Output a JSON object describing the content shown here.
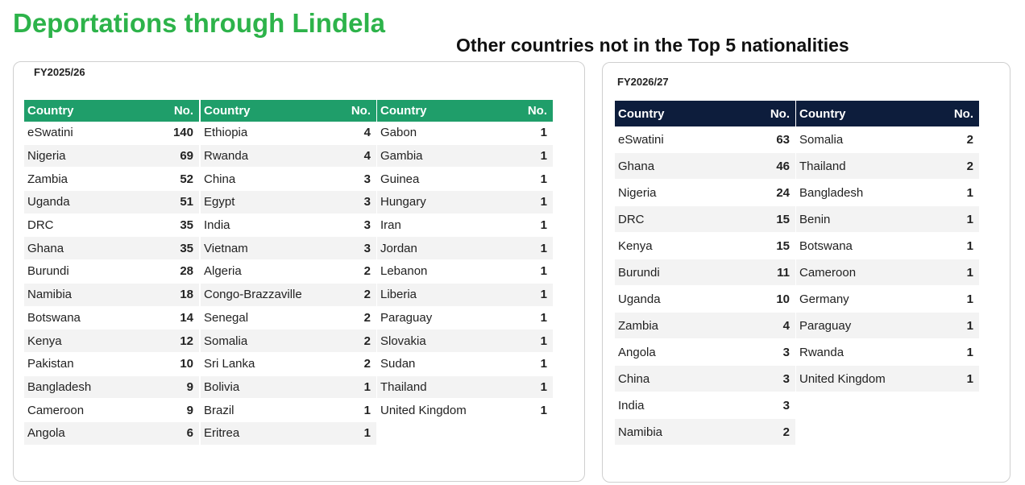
{
  "title": "Deportations through Lindela",
  "subtitle": "Other countries not in the Top 5 nationalities",
  "headers": {
    "country": "Country",
    "number": "No."
  },
  "fy2025": {
    "label": "FY2025/26",
    "columns": [
      [
        {
          "country": "eSwatini",
          "no": 140
        },
        {
          "country": "Nigeria",
          "no": 69
        },
        {
          "country": "Zambia",
          "no": 52
        },
        {
          "country": "Uganda",
          "no": 51
        },
        {
          "country": "DRC",
          "no": 35
        },
        {
          "country": "Ghana",
          "no": 35
        },
        {
          "country": "Burundi",
          "no": 28
        },
        {
          "country": "Namibia",
          "no": 18
        },
        {
          "country": "Botswana",
          "no": 14
        },
        {
          "country": "Kenya",
          "no": 12
        },
        {
          "country": "Pakistan",
          "no": 10
        },
        {
          "country": "Bangladesh",
          "no": 9
        },
        {
          "country": "Cameroon",
          "no": 9
        },
        {
          "country": "Angola",
          "no": 6
        }
      ],
      [
        {
          "country": "Ethiopia",
          "no": 4
        },
        {
          "country": "Rwanda",
          "no": 4
        },
        {
          "country": "China",
          "no": 3
        },
        {
          "country": "Egypt",
          "no": 3
        },
        {
          "country": "India",
          "no": 3
        },
        {
          "country": "Vietnam",
          "no": 3
        },
        {
          "country": "Algeria",
          "no": 2
        },
        {
          "country": "Congo-Brazzaville",
          "no": 2
        },
        {
          "country": "Senegal",
          "no": 2
        },
        {
          "country": "Somalia",
          "no": 2
        },
        {
          "country": "Sri Lanka",
          "no": 2
        },
        {
          "country": "Bolivia",
          "no": 1
        },
        {
          "country": "Brazil",
          "no": 1
        },
        {
          "country": "Eritrea",
          "no": 1
        }
      ],
      [
        {
          "country": "Gabon",
          "no": 1
        },
        {
          "country": "Gambia",
          "no": 1
        },
        {
          "country": "Guinea",
          "no": 1
        },
        {
          "country": "Hungary",
          "no": 1
        },
        {
          "country": "Iran",
          "no": 1
        },
        {
          "country": "Jordan",
          "no": 1
        },
        {
          "country": "Lebanon",
          "no": 1
        },
        {
          "country": "Liberia",
          "no": 1
        },
        {
          "country": "Paraguay",
          "no": 1
        },
        {
          "country": "Slovakia",
          "no": 1
        },
        {
          "country": "Sudan",
          "no": 1
        },
        {
          "country": "Thailand",
          "no": 1
        },
        {
          "country": "United Kingdom",
          "no": 1
        }
      ]
    ]
  },
  "fy2026": {
    "label": "FY2026/27",
    "columns": [
      [
        {
          "country": "eSwatini",
          "no": 63
        },
        {
          "country": "Ghana",
          "no": 46
        },
        {
          "country": "Nigeria",
          "no": 24
        },
        {
          "country": "DRC",
          "no": 15
        },
        {
          "country": "Kenya",
          "no": 15
        },
        {
          "country": "Burundi",
          "no": 11
        },
        {
          "country": "Uganda",
          "no": 10
        },
        {
          "country": "Zambia",
          "no": 4
        },
        {
          "country": "Angola",
          "no": 3
        },
        {
          "country": "China",
          "no": 3
        },
        {
          "country": "India",
          "no": 3
        },
        {
          "country": "Namibia",
          "no": 2
        }
      ],
      [
        {
          "country": "Somalia",
          "no": 2
        },
        {
          "country": "Thailand",
          "no": 2
        },
        {
          "country": "Bangladesh",
          "no": 1
        },
        {
          "country": "Benin",
          "no": 1
        },
        {
          "country": "Botswana",
          "no": 1
        },
        {
          "country": "Cameroon",
          "no": 1
        },
        {
          "country": "Germany",
          "no": 1
        },
        {
          "country": "Paraguay",
          "no": 1
        },
        {
          "country": "Rwanda",
          "no": 1
        },
        {
          "country": "United Kingdom",
          "no": 1
        }
      ]
    ]
  },
  "colors": {
    "title": "#2db34a",
    "fy2025_header": "#1f9e6a",
    "fy2026_header": "#0d1d3c",
    "row_alt": "#f3f3f3"
  }
}
